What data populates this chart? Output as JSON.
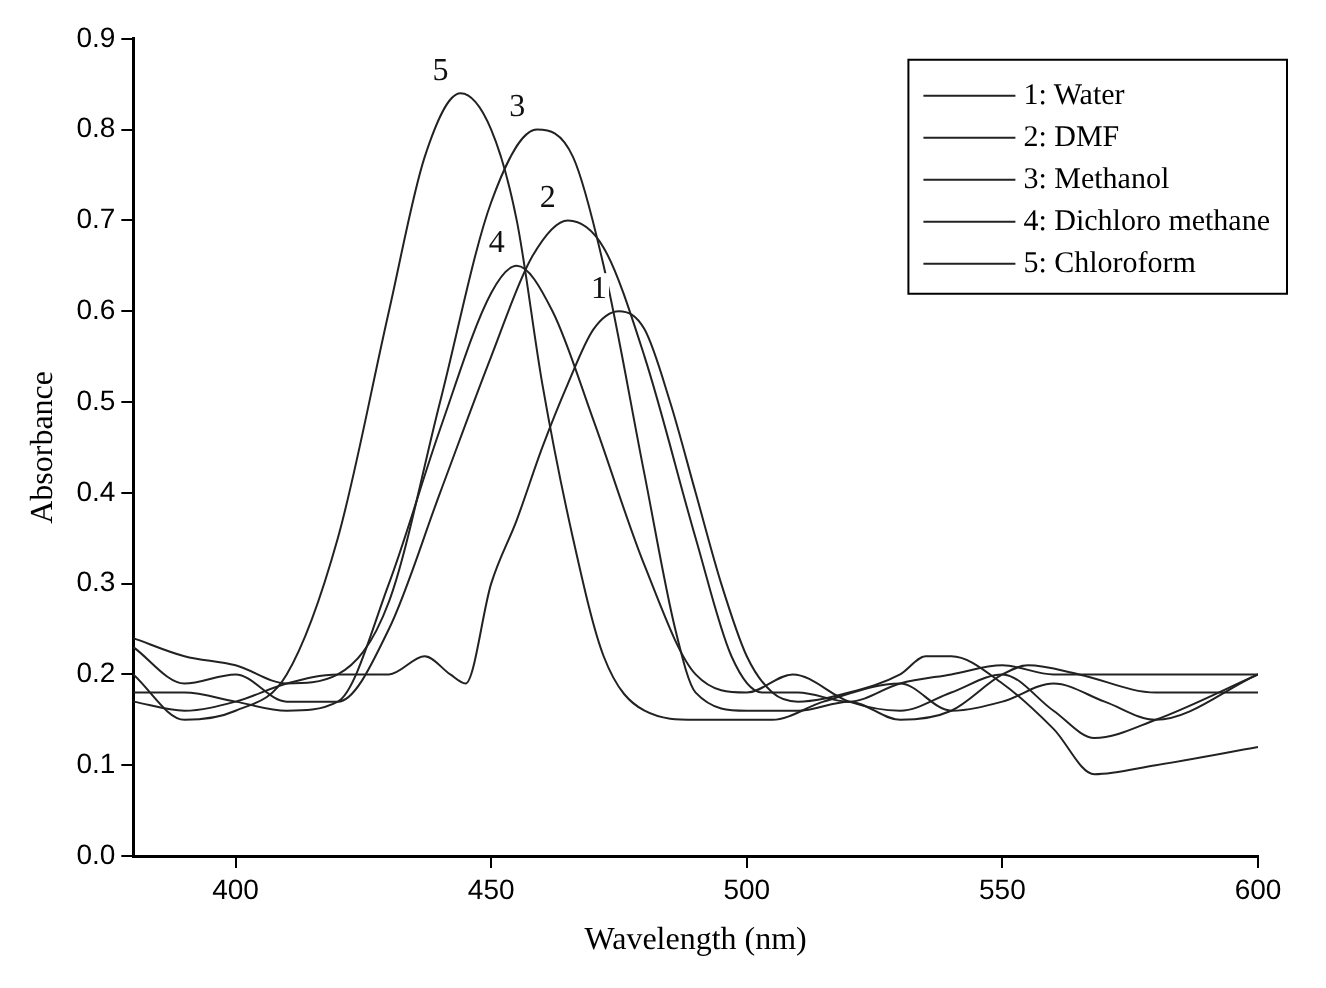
{
  "chart_data": {
    "type": "line",
    "xlabel": "Wavelength (nm)",
    "ylabel": "Absorbance",
    "xlim": [
      380,
      600
    ],
    "xticks": [
      400,
      450,
      500,
      550,
      600
    ],
    "ylim": [
      0,
      0.9
    ],
    "yticks": [
      {
        "value": 0,
        "label": "0.0"
      },
      {
        "value": 0.1,
        "label": "0.1"
      },
      {
        "value": 0.2,
        "label": "0.2"
      },
      {
        "value": 0.3,
        "label": "0.3"
      },
      {
        "value": 0.4,
        "label": "0.4"
      },
      {
        "value": 0.5,
        "label": "0.5"
      },
      {
        "value": 0.6,
        "label": "0.6"
      },
      {
        "value": 0.7,
        "label": "0.7"
      },
      {
        "value": 0.8,
        "label": "0.8"
      },
      {
        "value": 0.9,
        "label": "0.9"
      }
    ],
    "grid": false,
    "legend": "top right",
    "marker": "none",
    "line_style": "solid",
    "series": [
      {
        "name": "1: Water",
        "color": "#222222",
        "x": [
          380,
          390,
          400,
          410,
          420,
          430,
          437,
          442,
          445,
          450,
          455,
          460,
          465,
          470,
          475,
          480,
          485,
          490,
          495,
          500,
          505,
          510,
          520,
          530,
          535,
          540,
          550,
          560,
          568,
          580,
          600
        ],
        "values": [
          0.17,
          0.16,
          0.17,
          0.19,
          0.2,
          0.2,
          0.22,
          0.2,
          0.19,
          0.3,
          0.37,
          0.45,
          0.52,
          0.58,
          0.6,
          0.58,
          0.5,
          0.4,
          0.3,
          0.22,
          0.18,
          0.17,
          0.18,
          0.2,
          0.22,
          0.22,
          0.19,
          0.14,
          0.09,
          0.1,
          0.12
        ]
      },
      {
        "name": "2: DMF",
        "color": "#222222",
        "x": [
          380,
          390,
          400,
          410,
          420,
          430,
          440,
          450,
          458,
          465,
          472,
          480,
          490,
          497,
          503,
          510,
          520,
          530,
          540,
          550,
          560,
          580,
          600
        ],
        "values": [
          0.23,
          0.19,
          0.2,
          0.17,
          0.17,
          0.25,
          0.4,
          0.55,
          0.66,
          0.7,
          0.67,
          0.55,
          0.35,
          0.22,
          0.18,
          0.18,
          0.17,
          0.19,
          0.2,
          0.21,
          0.2,
          0.2,
          0.2
        ]
      },
      {
        "name": "3: Methanol",
        "color": "#222222",
        "x": [
          380,
          390,
          400,
          410,
          420,
          430,
          440,
          450,
          459,
          466,
          472,
          480,
          486,
          490,
          500,
          510,
          520,
          530,
          540,
          550,
          555,
          565,
          580,
          600
        ],
        "values": [
          0.24,
          0.22,
          0.21,
          0.19,
          0.2,
          0.28,
          0.5,
          0.72,
          0.8,
          0.77,
          0.65,
          0.42,
          0.25,
          0.18,
          0.16,
          0.16,
          0.17,
          0.15,
          0.16,
          0.2,
          0.21,
          0.2,
          0.18,
          0.18
        ]
      },
      {
        "name": "4: Dichloro methane",
        "color": "#222222",
        "x": [
          380,
          390,
          400,
          410,
          420,
          430,
          440,
          450,
          455,
          462,
          470,
          480,
          490,
          500,
          509,
          520,
          530,
          540,
          550,
          560,
          568,
          580,
          600
        ],
        "values": [
          0.18,
          0.18,
          0.17,
          0.16,
          0.17,
          0.3,
          0.47,
          0.62,
          0.65,
          0.6,
          0.48,
          0.32,
          0.2,
          0.18,
          0.2,
          0.17,
          0.16,
          0.18,
          0.2,
          0.16,
          0.13,
          0.15,
          0.2
        ]
      },
      {
        "name": "5: Chloroform",
        "color": "#222222",
        "x": [
          380,
          390,
          400,
          410,
          420,
          430,
          437,
          444,
          450,
          455,
          460,
          466,
          472,
          480,
          490,
          505,
          515,
          530,
          540,
          550,
          560,
          570,
          580,
          600
        ],
        "values": [
          0.2,
          0.15,
          0.16,
          0.2,
          0.35,
          0.6,
          0.77,
          0.84,
          0.8,
          0.7,
          0.52,
          0.35,
          0.22,
          0.16,
          0.15,
          0.15,
          0.17,
          0.19,
          0.16,
          0.17,
          0.19,
          0.17,
          0.15,
          0.2
        ]
      }
    ],
    "annotations": [
      {
        "text": "1",
        "x": 475,
        "y": 0.6
      },
      {
        "text": "2",
        "x": 465,
        "y": 0.7
      },
      {
        "text": "3",
        "x": 459,
        "y": 0.8
      },
      {
        "text": "4",
        "x": 455,
        "y": 0.65
      },
      {
        "text": "5",
        "x": 444,
        "y": 0.84
      }
    ]
  }
}
